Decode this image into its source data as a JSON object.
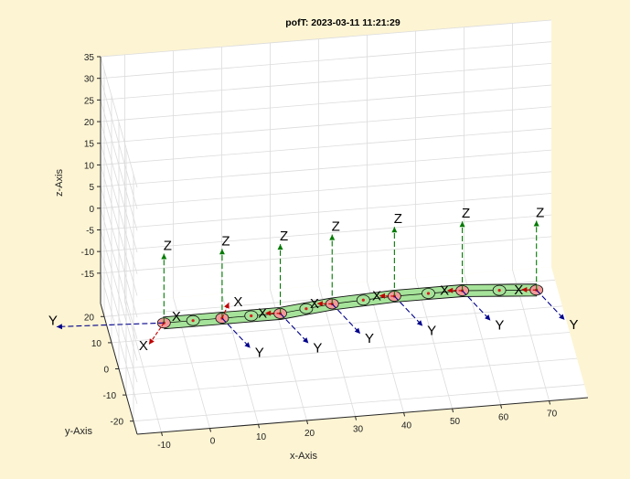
{
  "chart_data": {
    "type": "3d-line",
    "title": "pofT: 2023-03-11 11:21:29",
    "xlabel": "x-Axis",
    "ylabel": "y-Axis",
    "zlabel": "z-Axis",
    "xlim": [
      -15,
      78
    ],
    "ylim": [
      -25,
      25
    ],
    "zlim": [
      -22,
      35
    ],
    "xticks": [
      -10,
      0,
      10,
      20,
      30,
      40,
      50,
      60,
      70
    ],
    "yticks": [
      -20,
      -10,
      0,
      10,
      20
    ],
    "zticks": [
      -15,
      -10,
      -5,
      0,
      5,
      10,
      15,
      20,
      25,
      30,
      35
    ],
    "grid": true,
    "tube_color": "#a6e39a",
    "x_arrow_color": "#c00000",
    "y_arrow_color": "#00008b",
    "z_arrow_color": "#007a00",
    "frames": [
      {
        "x": -6,
        "y": -2,
        "z": -11,
        "x_label": "X",
        "y_label": "Y",
        "z_label": "Z"
      },
      {
        "x": 6,
        "y": -2,
        "z": -11,
        "x_label": "X",
        "y_label": "Y",
        "z_label": "Z"
      },
      {
        "x": 18,
        "y": -2,
        "z": -11,
        "x_label": "X",
        "y_label": "Y",
        "z_label": "Z"
      },
      {
        "x": 29,
        "y": 0,
        "z": -11,
        "x_label": "X",
        "y_label": "Y",
        "z_label": "Z"
      },
      {
        "x": 42,
        "y": 1,
        "z": -11,
        "x_label": "X",
        "y_label": "Y",
        "z_label": "Z"
      },
      {
        "x": 56,
        "y": 1,
        "z": -11,
        "x_label": "X",
        "y_label": "Y",
        "z_label": "Z"
      },
      {
        "x": 71,
        "y": -1,
        "z": -11,
        "x_label": "X",
        "y_label": "Y",
        "z_label": "Z"
      }
    ],
    "mid_points": [
      {
        "x": 0,
        "y": -2,
        "z": -11
      },
      {
        "x": 12,
        "y": -2,
        "z": -11
      },
      {
        "x": 23.5,
        "y": -1,
        "z": -11
      },
      {
        "x": 35.5,
        "y": 0.5,
        "z": -11
      },
      {
        "x": 49,
        "y": 1,
        "z": -11
      },
      {
        "x": 63.5,
        "y": 0,
        "z": -11
      }
    ]
  }
}
